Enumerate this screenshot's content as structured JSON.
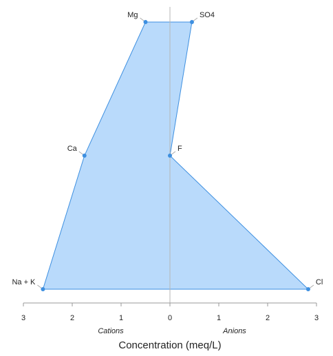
{
  "chart_data": {
    "type": "stiff",
    "x_label": "Concentration (meq/L)",
    "left_label": "Cations",
    "right_label": "Anions",
    "cations": {
      "labels": [
        "Mg",
        "Ca",
        "Na + K"
      ],
      "values": [
        -0.5,
        -1.75,
        -2.6
      ]
    },
    "anions": {
      "labels": [
        "SO4",
        "F",
        "Cl"
      ],
      "values": [
        0.45,
        0,
        2.83
      ]
    },
    "fill": "#b9dafb",
    "color": "#3d8fe0",
    "xlim": [
      -3,
      3
    ],
    "xticks": [
      {
        "value": -3,
        "label": "3"
      },
      {
        "value": -2,
        "label": "2"
      },
      {
        "value": -1,
        "label": "1"
      },
      0,
      1,
      2,
      3
    ]
  }
}
